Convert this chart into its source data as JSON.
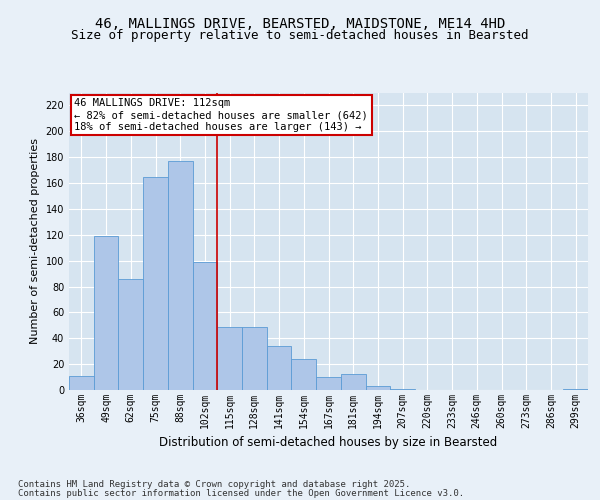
{
  "title_line1": "46, MALLINGS DRIVE, BEARSTED, MAIDSTONE, ME14 4HD",
  "title_line2": "Size of property relative to semi-detached houses in Bearsted",
  "xlabel": "Distribution of semi-detached houses by size in Bearsted",
  "ylabel": "Number of semi-detached properties",
  "categories": [
    "36sqm",
    "49sqm",
    "62sqm",
    "75sqm",
    "88sqm",
    "102sqm",
    "115sqm",
    "128sqm",
    "141sqm",
    "154sqm",
    "167sqm",
    "181sqm",
    "194sqm",
    "207sqm",
    "220sqm",
    "233sqm",
    "246sqm",
    "260sqm",
    "273sqm",
    "286sqm",
    "299sqm"
  ],
  "values": [
    11,
    119,
    86,
    165,
    177,
    99,
    49,
    49,
    34,
    24,
    10,
    12,
    3,
    1,
    0,
    0,
    0,
    0,
    0,
    0,
    1
  ],
  "bar_color": "#aec6e8",
  "bar_edge_color": "#5b9bd5",
  "vline_color": "#cc0000",
  "vline_bin_index": 6,
  "annotation_text": "46 MALLINGS DRIVE: 112sqm\n← 82% of semi-detached houses are smaller (642)\n18% of semi-detached houses are larger (143) →",
  "annotation_box_color": "#ffffff",
  "annotation_box_edge_color": "#cc0000",
  "ylim": [
    0,
    230
  ],
  "yticks": [
    0,
    20,
    40,
    60,
    80,
    100,
    120,
    140,
    160,
    180,
    200,
    220
  ],
  "footer_line1": "Contains HM Land Registry data © Crown copyright and database right 2025.",
  "footer_line2": "Contains public sector information licensed under the Open Government Licence v3.0.",
  "background_color": "#e8f0f8",
  "plot_background_color": "#d6e4f0",
  "grid_color": "#ffffff",
  "title_fontsize": 10,
  "subtitle_fontsize": 9,
  "tick_fontsize": 7,
  "ylabel_fontsize": 8,
  "xlabel_fontsize": 8.5,
  "annotation_fontsize": 7.5,
  "footer_fontsize": 6.5
}
